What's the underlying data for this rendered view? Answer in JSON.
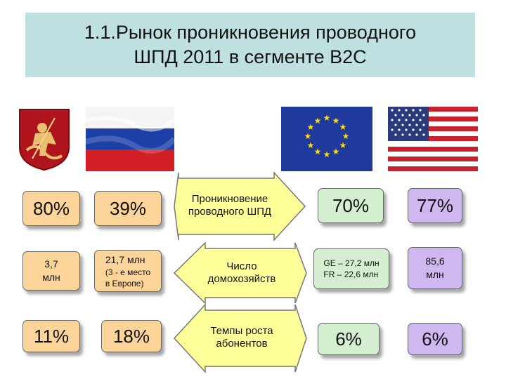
{
  "title": {
    "line1": "1.1.Рынок проникновения проводного",
    "line2": "ШПД 2011 в сегменте B2C"
  },
  "icons": {
    "emblem": "moscow-coat-of-arms-icon",
    "russia": "russia-flag-icon",
    "eu": "eu-flag-icon",
    "usa": "usa-flag-icon"
  },
  "colors": {
    "orange": "#fbd49a",
    "green": "#d4efcf",
    "purple": "#cfb8f0",
    "title_bg": "#bfe0e0",
    "arrow": "#ffff99"
  },
  "rows": [
    {
      "label": [
        "Проникновение",
        "проводного ШПД"
      ],
      "moscow": "80%",
      "russia": "39%",
      "europe": "70%",
      "usa": "77%"
    },
    {
      "label": [
        "Число",
        "домохозяйств"
      ],
      "moscow": [
        "3,7",
        "млн"
      ],
      "russia": {
        "main": "21,7 млн",
        "note1": "(3 - е место",
        "note2": "в Европе)"
      },
      "europe": [
        "GE – 27,2 млн",
        "FR – 22,6 млн"
      ],
      "usa": [
        "85,6",
        "млн"
      ]
    },
    {
      "label": [
        "Темпы роста",
        "абонентов"
      ],
      "moscow": "11%",
      "russia": "18%",
      "europe": "6%",
      "usa": "6%"
    }
  ]
}
